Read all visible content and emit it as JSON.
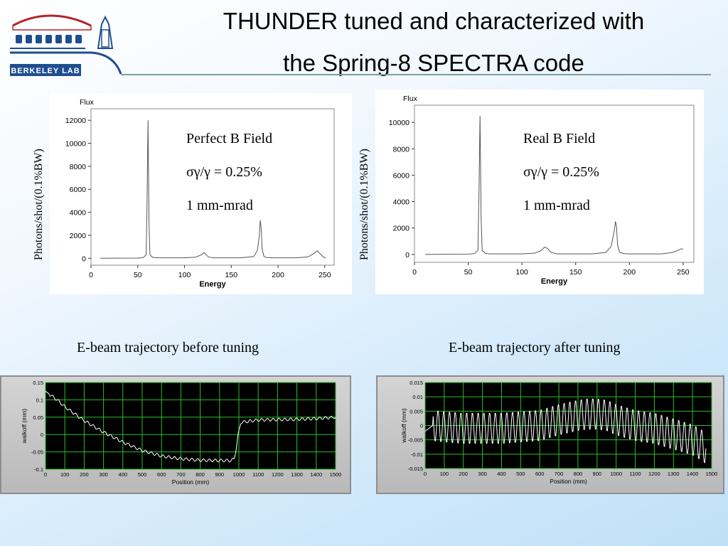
{
  "title": {
    "line1": "THUNDER tuned and characterized with",
    "line2": "the Spring-8 SPECTRA code"
  },
  "logo": {
    "text": "BERKELEY LAB"
  },
  "colors": {
    "scope_bg": "#000000",
    "scope_grid": "#27c127",
    "scope_trace": "#ffffff",
    "spectrum_line": "#555555"
  },
  "chart_data": [
    {
      "type": "line",
      "panel": "top-left",
      "title": "Flux",
      "xlabel": "Energy",
      "ylabel": "Photons/shot/(0.1%BW)",
      "xlim": [
        0,
        260
      ],
      "ylim": [
        -600,
        13000
      ],
      "xticks": [
        0,
        50,
        100,
        150,
        200,
        250
      ],
      "yticks": [
        0,
        2000,
        4000,
        6000,
        8000,
        10000,
        12000
      ],
      "grid": false,
      "annotations": [
        "Perfect B Field",
        "σγ/γ = 0.25%",
        "1 mm-mrad"
      ],
      "x": [
        10,
        50,
        56,
        59,
        60,
        61,
        62,
        63,
        66,
        70,
        100,
        112,
        118,
        121,
        123,
        126,
        132,
        160,
        174,
        178,
        180,
        181,
        182,
        183,
        185,
        188,
        194,
        220,
        232,
        238,
        242,
        245,
        249,
        251
      ],
      "values": [
        0,
        20,
        60,
        300,
        5000,
        12000,
        3000,
        300,
        80,
        40,
        40,
        100,
        300,
        500,
        300,
        100,
        40,
        40,
        150,
        700,
        2000,
        3300,
        2600,
        800,
        150,
        60,
        40,
        40,
        120,
        400,
        650,
        400,
        80,
        30
      ]
    },
    {
      "type": "line",
      "panel": "top-right",
      "title": "Flux",
      "xlabel": "Energy",
      "ylabel": "Photons/shot/(0.1%BW)",
      "xlim": [
        0,
        260
      ],
      "ylim": [
        -600,
        11300
      ],
      "xticks": [
        0,
        50,
        100,
        150,
        200,
        250
      ],
      "yticks": [
        0,
        2000,
        4000,
        6000,
        8000,
        10000
      ],
      "grid": false,
      "annotations": [
        "Real B Field",
        "σγ/γ = 0.25%",
        "1 mm-mrad"
      ],
      "x": [
        10,
        50,
        56,
        59,
        60,
        61,
        62,
        63,
        66,
        70,
        100,
        112,
        118,
        121,
        124,
        127,
        133,
        165,
        178,
        183,
        186,
        187,
        188,
        189,
        191,
        195,
        200,
        230,
        240,
        245,
        248,
        250
      ],
      "values": [
        0,
        20,
        60,
        300,
        4500,
        10500,
        2800,
        300,
        80,
        40,
        40,
        100,
        300,
        550,
        450,
        150,
        40,
        40,
        150,
        600,
        1800,
        2500,
        2100,
        700,
        150,
        60,
        40,
        40,
        150,
        300,
        420,
        420
      ]
    },
    {
      "type": "line",
      "panel": "bottom-left",
      "title": "E-beam trajectory before tuning",
      "xlabel": "Position (mm)",
      "ylabel": "walkoff (mm)",
      "xlim": [
        0,
        1500
      ],
      "ylim": [
        -0.1,
        0.15
      ],
      "xticks": [
        0,
        100,
        200,
        300,
        400,
        500,
        600,
        700,
        800,
        900,
        1000,
        1100,
        1200,
        1300,
        1400,
        1500
      ],
      "yticks": [
        0.15,
        0.1,
        0.05,
        0,
        -0.05,
        -0.1
      ],
      "ytick_labels": [
        "0.15",
        "0.1",
        "0.05",
        "0",
        "-0.05",
        "-0.1"
      ],
      "grid": true,
      "x": [
        0,
        30,
        60,
        100,
        200,
        300,
        400,
        500,
        600,
        700,
        800,
        900,
        960,
        975,
        985,
        995,
        1010,
        1100,
        1200,
        1300,
        1400,
        1500
      ],
      "values": [
        0.125,
        0.112,
        0.1,
        0.08,
        0.04,
        0.007,
        -0.022,
        -0.046,
        -0.062,
        -0.07,
        -0.074,
        -0.075,
        -0.075,
        -0.07,
        -0.045,
        -0.005,
        0.035,
        0.042,
        0.043,
        0.044,
        0.046,
        0.05
      ],
      "ripple_amplitude": 0.004,
      "ripple_period": 30
    },
    {
      "type": "line",
      "panel": "bottom-right",
      "title": "E-beam trajectory after tuning",
      "xlabel": "Position (mm)",
      "ylabel": "walkoff (mm)",
      "xlim": [
        0,
        1500
      ],
      "ylim": [
        -0.015,
        0.015
      ],
      "xticks": [
        0,
        100,
        200,
        300,
        400,
        500,
        600,
        700,
        800,
        900,
        1000,
        1100,
        1200,
        1300,
        1400,
        1500
      ],
      "yticks": [
        0.015,
        0.01,
        0.005,
        0,
        -0.005,
        -0.01,
        -0.015
      ],
      "ytick_labels": [
        "0.015",
        "0.01",
        "0.005",
        "0",
        "-0.005",
        "-0.01",
        "-0.015"
      ],
      "grid": true,
      "x": [
        0,
        40,
        100,
        200,
        300,
        400,
        500,
        600,
        700,
        800,
        850,
        900,
        950,
        1000,
        1100,
        1200,
        1300,
        1400,
        1450,
        1470
      ],
      "values": [
        -0.002,
        0.0,
        -0.0005,
        -0.001,
        -0.001,
        -0.001,
        -0.0005,
        0.0,
        0.002,
        0.0035,
        0.004,
        0.004,
        0.0035,
        0.002,
        0.0,
        -0.001,
        -0.003,
        -0.005,
        -0.007,
        -0.008
      ],
      "ripple_amplitude": 0.0055,
      "ripple_period": 30
    }
  ]
}
